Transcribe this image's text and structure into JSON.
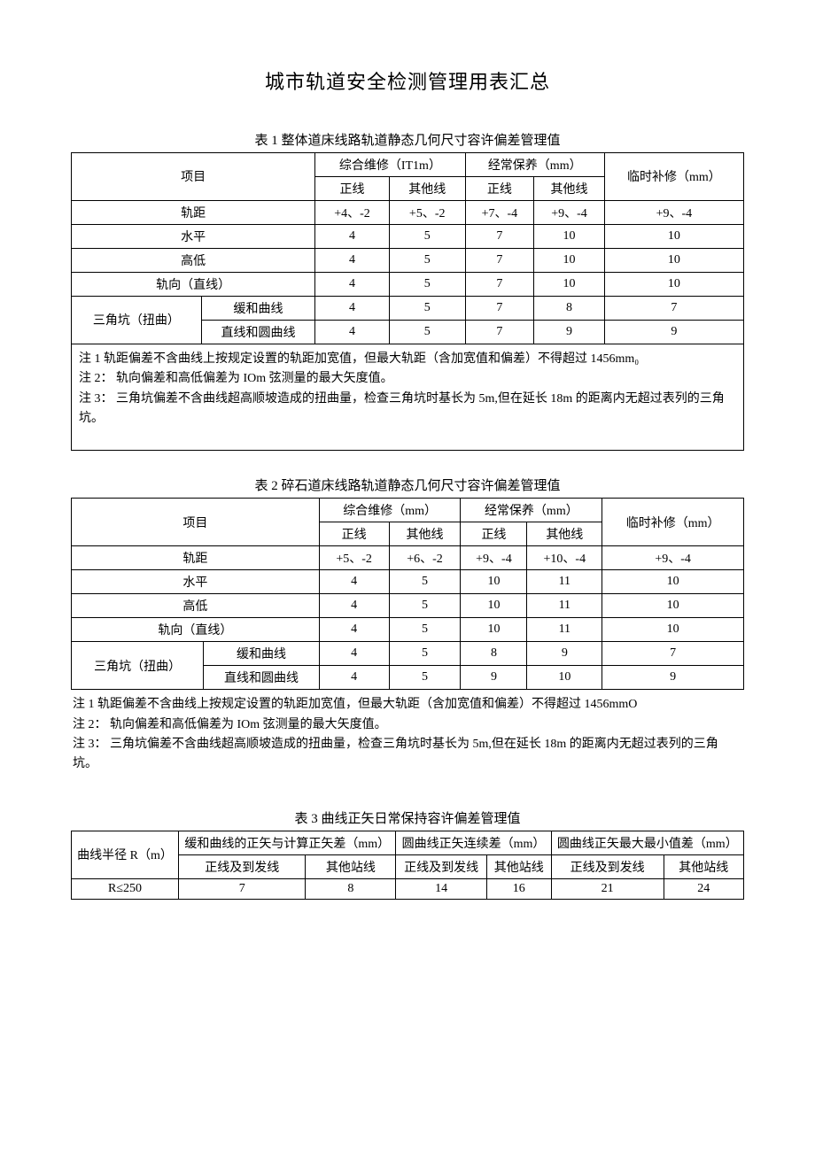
{
  "main_title": "城市轨道安全检测管理用表汇总",
  "table1": {
    "title": "表 1 整体道床线路轨道静态几何尺寸容许偏差管理值",
    "headers": {
      "item": "项目",
      "col_a": "综合维修（IT1m）",
      "col_b": "经常保养（mm）",
      "col_c": "临时补修（mm）",
      "sub_main": "正线",
      "sub_other": "其他线"
    },
    "row_labels": {
      "gauge": "轨距",
      "level": "水平",
      "height": "高低",
      "direction": "轨向（直线）",
      "twist": "三角坑（扭曲）",
      "twist_a": "缓和曲线",
      "twist_b": "直线和圆曲线"
    },
    "rows": {
      "gauge": [
        "+4、-2",
        "+5、-2",
        "+7、-4",
        "+9、-4",
        "+9、-4"
      ],
      "level": [
        "4",
        "5",
        "7",
        "10",
        "10"
      ],
      "height": [
        "4",
        "5",
        "7",
        "10",
        "10"
      ],
      "direction": [
        "4",
        "5",
        "7",
        "10",
        "10"
      ],
      "twist_a": [
        "4",
        "5",
        "7",
        "8",
        "7"
      ],
      "twist_b": [
        "4",
        "5",
        "7",
        "9",
        "9"
      ]
    },
    "notes": {
      "n1": "注 1 轨距偏差不含曲线上按规定设置的轨距加宽值，但最大轨距（含加宽值和偏差）不得超过 1456mm₀",
      "n2": "注 2： 轨向偏差和高低偏差为 IOm 弦测量的最大矢度值。",
      "n3": "注 3： 三角坑偏差不含曲线超高顺坡造成的扭曲量，检查三角坑时基长为 5m,但在延长 18m 的距离内无超过表列的三角坑。"
    }
  },
  "table2": {
    "title": "表 2 碎石道床线路轨道静态几何尺寸容许偏差管理值",
    "headers": {
      "item": "项目",
      "col_a": "综合维修（mm）",
      "col_b": "经常保养（mm）",
      "col_c": "临时补修（mm）",
      "sub_main": "正线",
      "sub_other": "其他线"
    },
    "row_labels": {
      "gauge": "轨距",
      "level": "水平",
      "height": "高低",
      "direction": "轨向（直线）",
      "twist": "三角坑（扭曲）",
      "twist_a": "缓和曲线",
      "twist_b": "直线和圆曲线"
    },
    "rows": {
      "gauge": [
        "+5、-2",
        "+6、-2",
        "+9、-4",
        "+10、-4",
        "+9、-4"
      ],
      "level": [
        "4",
        "5",
        "10",
        "11",
        "10"
      ],
      "height": [
        "4",
        "5",
        "10",
        "11",
        "10"
      ],
      "direction": [
        "4",
        "5",
        "10",
        "11",
        "10"
      ],
      "twist_a": [
        "4",
        "5",
        "8",
        "9",
        "7"
      ],
      "twist_b": [
        "4",
        "5",
        "9",
        "10",
        "9"
      ]
    },
    "notes": {
      "n1": "注 1 轨距偏差不含曲线上按规定设置的轨距加宽值，但最大轨距（含加宽值和偏差）不得超过 1456mmO",
      "n2": "注 2： 轨向偏差和高低偏差为 IOm 弦测量的最大矢度值。",
      "n3": "注 3： 三角坑偏差不含曲线超高顺坡造成的扭曲量，检查三角坑时基长为 5m,但在延长 18m 的距离内无超过表列的三角坑。"
    }
  },
  "table3": {
    "title": "表 3 曲线正矢日常保持容许偏差管理值",
    "headers": {
      "radius": "曲线半径 R（m）",
      "col_a": "缓和曲线的正矢与计算正矢差（mm）",
      "col_b": "圆曲线正矢连续差（mm）",
      "col_c": "圆曲线正矢最大最小值差（mm）",
      "sub_main": "正线及到发线",
      "sub_other": "其他站线"
    },
    "row1_label": "R≤250",
    "row1": [
      "7",
      "8",
      "14",
      "16",
      "21",
      "24"
    ]
  }
}
